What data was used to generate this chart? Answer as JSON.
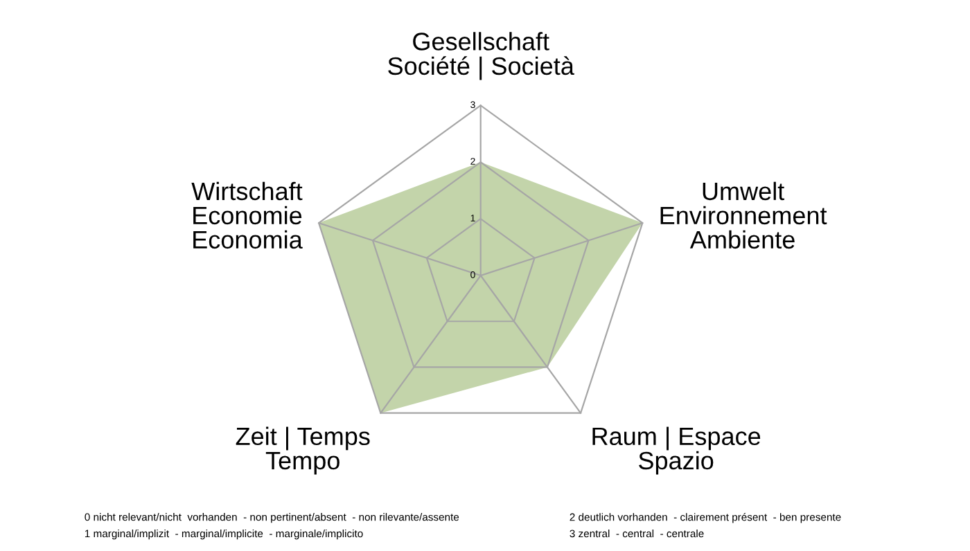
{
  "chart_data": {
    "type": "radar",
    "categories": [
      "Gesellschaft\nSociété | Società",
      "Umwelt\nEnvironnement\nAmbiente",
      "Raum | Espace\nSpazio",
      "Zeit | Temps\nTempo",
      "Wirtschaft\nEconomie\nEconomia"
    ],
    "series": [
      {
        "color": "#c3d4aa",
        "values": [
          2,
          3,
          2,
          3,
          3
        ]
      }
    ],
    "ylim": [
      0,
      3
    ],
    "yticks": [
      0,
      1,
      2,
      3
    ],
    "grid": true,
    "legend": false,
    "annotations": [
      "0 nicht relevant/nicht  vorhanden  - non pertinent/absent  - non rilevante/assente",
      "1 marginal/implizit  - marginal/implicite  - marginale/implicito",
      "2 deutlich vorhanden  - clairement présent  - ben presente",
      "3 zentral  - central  - centrale"
    ]
  }
}
